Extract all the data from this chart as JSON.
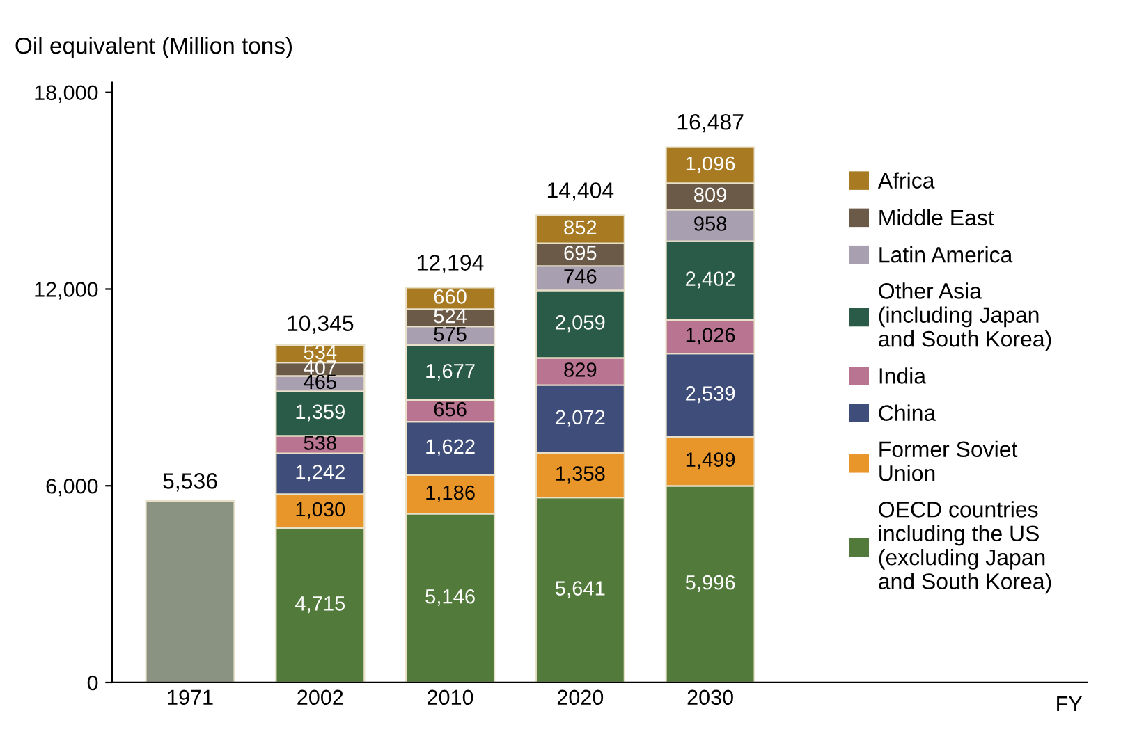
{
  "chart_data": {
    "type": "bar",
    "stacked": true,
    "ylabel": "Oil equivalent (Million tons)",
    "categories": [
      "1971",
      "2002",
      "2010",
      "2020",
      "2030"
    ],
    "series": [
      {
        "color": "#8a9282",
        "values": [
          5536,
          null,
          null,
          null,
          null
        ],
        "value_labels": [
          "5,536",
          null,
          null,
          null,
          null
        ]
      },
      {
        "name": "OECD countries\nincluding the US\n(excluding Japan\nand South Korea)",
        "color": "#527a3a",
        "values": [
          null,
          4715,
          5146,
          5641,
          5996
        ],
        "value_labels": [
          null,
          "4,715",
          "5,146",
          "5,641",
          "5,996"
        ]
      },
      {
        "name": "Former Soviet\nUnion",
        "color": "#e8952a",
        "values": [
          null,
          1030,
          1186,
          1358,
          1499
        ],
        "value_labels": [
          null,
          "1,030",
          "1,186",
          "1,358",
          "1,499"
        ]
      },
      {
        "name": "China",
        "color": "#3f4d7a",
        "values": [
          null,
          1242,
          1622,
          2072,
          2539
        ],
        "value_labels": [
          null,
          "1,242",
          "1,622",
          "2,072",
          "2,539"
        ]
      },
      {
        "name": "India",
        "color": "#b87490",
        "values": [
          null,
          538,
          656,
          829,
          1026
        ],
        "value_labels": [
          null,
          "538",
          "656",
          "829",
          "1,026"
        ]
      },
      {
        "name": "Other Asia\n(including Japan\nand South Korea)",
        "color": "#2a5a48",
        "values": [
          null,
          1359,
          1677,
          2059,
          2402
        ],
        "value_labels": [
          null,
          "1,359",
          "1,677",
          "2,059",
          "2,402"
        ]
      },
      {
        "name": "Latin America",
        "color": "#a89fb0",
        "values": [
          null,
          465,
          575,
          746,
          958
        ],
        "value_labels": [
          null,
          "465",
          "575",
          "746",
          "958"
        ]
      },
      {
        "name": "Middle East",
        "color": "#6b5a48",
        "values": [
          null,
          407,
          524,
          695,
          809
        ],
        "value_labels": [
          null,
          "407",
          "524",
          "695",
          "809"
        ]
      },
      {
        "name": "Africa",
        "color": "#a87a22",
        "values": [
          null,
          534,
          660,
          852,
          1096
        ],
        "value_labels": [
          null,
          "534",
          "660",
          "852",
          "1,096"
        ]
      }
    ],
    "annotations": [
      "FY",
      {
        "text": "10,345",
        "x": "2002",
        "y": 10345
      },
      {
        "text": "12,194",
        "x": "2010",
        "y": 12194
      },
      {
        "text": "14,404",
        "x": "2020",
        "y": 14404
      },
      {
        "text": "16,487",
        "x": "2030",
        "y": 16487
      }
    ],
    "ylim": [
      0,
      18300
    ],
    "yticks": [
      0,
      {
        "value": 6000,
        "label": "6,000"
      },
      {
        "value": 12000,
        "label": "12,000"
      },
      {
        "value": 18000,
        "label": "18,000"
      }
    ],
    "grid": false,
    "legend": "right"
  }
}
